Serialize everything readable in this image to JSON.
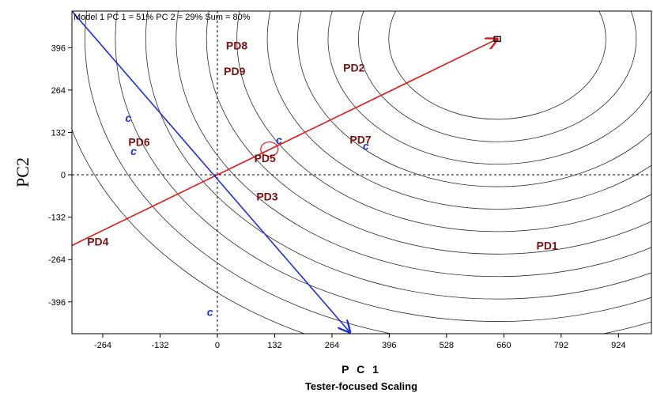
{
  "chart_data": {
    "type": "scatter",
    "title": "Model 1 PC 1 = 51% PC 2 = 29% Sum = 80%",
    "xlabel": "P C 1",
    "ylabel": "PC2",
    "subtitle": "Tester-focused Scaling",
    "xlim": [
      -335,
      1000
    ],
    "ylim": [
      -495,
      510
    ],
    "x_ticks": [
      -264,
      -132,
      0,
      132,
      264,
      396,
      528,
      660,
      792,
      924
    ],
    "y_ticks": [
      396,
      264,
      132,
      0,
      -132,
      -264,
      -396
    ],
    "grid": false,
    "ideal_point": {
      "x": 645,
      "y": 423
    },
    "circle_radii": [
      1020,
      950,
      880,
      810,
      740,
      670,
      600,
      530,
      460,
      390,
      320,
      250
    ],
    "points": [
      {
        "label": "PD1",
        "x": 735,
        "y": -233,
        "kind": "genotype"
      },
      {
        "label": "PD2",
        "x": 290,
        "y": 322,
        "kind": "genotype"
      },
      {
        "label": "PD3",
        "x": 90,
        "y": -80,
        "kind": "genotype"
      },
      {
        "label": "PD4",
        "x": -300,
        "y": -220,
        "kind": "genotype"
      },
      {
        "label": "PD5",
        "x": 85,
        "y": 40,
        "kind": "genotype"
      },
      {
        "label": "PD6",
        "x": -205,
        "y": 90,
        "kind": "genotype"
      },
      {
        "label": "PD7",
        "x": 305,
        "y": 97,
        "kind": "genotype"
      },
      {
        "label": "PD8",
        "x": 20,
        "y": 390,
        "kind": "genotype"
      },
      {
        "label": "PD9",
        "x": 15,
        "y": 310,
        "kind": "genotype"
      },
      {
        "label": "c",
        "x": -212,
        "y": 165,
        "kind": "tester"
      },
      {
        "label": "c",
        "x": -200,
        "y": 62,
        "kind": "tester"
      },
      {
        "label": "c",
        "x": 135,
        "y": 96,
        "kind": "tester"
      },
      {
        "label": "c",
        "x": 335,
        "y": 78,
        "kind": "tester"
      },
      {
        "label": "c",
        "x": -24,
        "y": -440,
        "kind": "tester"
      }
    ],
    "aec_line": {
      "from": [
        -335,
        -220
      ],
      "to": [
        645,
        423
      ]
    },
    "arrow": {
      "from": [
        -335,
        510
      ],
      "to": [
        305,
        -490
      ]
    },
    "small_circle": {
      "x": 120,
      "y": 80
    },
    "colors": {
      "pd": "#7a1010",
      "tester": "#1f2fd6",
      "aec": "#e01818",
      "arrow": "#1f2fd6",
      "circles": "#2a2a2a"
    }
  }
}
